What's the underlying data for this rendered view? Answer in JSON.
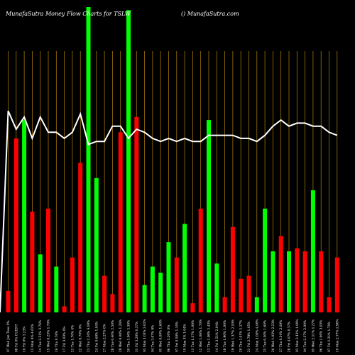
{
  "chart_data": {
    "type": "bar",
    "title": "MunafaSutra  Money Flow  Charts for TSLW",
    "subtitle": "() MunafaSutra.com",
    "ylim": [
      0,
      100
    ],
    "grid": true,
    "colors": {
      "up": "#00ff00",
      "down": "#ff0000",
      "line": "#ffffff",
      "grid": "#b8860b",
      "background": "#000000"
    },
    "categories": [
      "07 Wed Jan Tues 0%",
      "09 Fri 0% CUENT",
      "10 Fri 0% 3.23%",
      "13 Mon 4% 4.02%",
      "14 Tue 3.51% 3.76%",
      "15 Wed 0.23% 1.70%",
      "16 Thu 0.76%",
      "17 Fri 3.03% 0%",
      "21 Tue 1.70% 4%",
      "22 Wed 0.70% 0%",
      "23 Thu 2.20% 4.00%",
      "24 Fri 0.60% 1.04%",
      "27 Mon 2.27% 0%",
      "28 Tue 0.40% 2.50%",
      "29 Wed 0.00% 1.26%",
      "30 Thu 1.00% 1.30%",
      "31 Fri 3.20% 0.37%",
      "03 Mon 1.03% 3.01%",
      "04 Tue 3.07% 0%",
      "05 Wed 0.00% 1.60%",
      "06 Thu 3.20% 0%",
      "07 Fri 0.50% 1.10%",
      "10 Mon 1% 1.04%",
      "11 Tue 1.37% 1.00%",
      "12 Wed 1.06% 1.70%",
      "13 Thu 1.09% 1.43%",
      "14 Fri 3.51% 2.04%",
      "18 Tue 1.90% 1.00%",
      "19 Wed 1.37% 2.10%",
      "20 Thu 1.01% 1.17%",
      "21 Fri 2.79% 1.05%",
      "24 Mon 1.00% 4.00%",
      "25 Tue 0.50% 1.60%",
      "26 Wed 1.03% 2.23%",
      "27 Thu 0.34% 2.00%",
      "28 Fri 4.07% 0.37%",
      "03 Mon 2.13% 1.00%",
      "04 Tue 2.37% 2.00%",
      "05 Wed 2.11% 1.27%",
      "06 Thu 1.00% 3.03%",
      "07 Fri 1.21% 1.70%",
      "10 Mon 2.77% 2.90%"
    ],
    "series": [
      {
        "directions": [
          "down",
          "down",
          "up",
          "down",
          "up",
          "down",
          "up",
          "down",
          "down",
          "down",
          "up",
          "up",
          "down",
          "down",
          "down",
          "up",
          "down",
          "up",
          "up",
          "up",
          "up",
          "down",
          "up",
          "down",
          "down",
          "up",
          "up",
          "down",
          "down",
          "down",
          "down",
          "up",
          "up",
          "up",
          "down",
          "up",
          "down",
          "down",
          "up",
          "down",
          "down",
          "down"
        ],
        "values": [
          7,
          57,
          63,
          33,
          19,
          34,
          15,
          2,
          18,
          49,
          100,
          44,
          12,
          6,
          59,
          99,
          64,
          9,
          15,
          13,
          23,
          18,
          29,
          3,
          34,
          63,
          16,
          5,
          28,
          11,
          12,
          5,
          34,
          20,
          25,
          20,
          21,
          20,
          40,
          20,
          5,
          18
        ]
      },
      {
        "name": "",
        "values": [
          66,
          60,
          64,
          57,
          64,
          59,
          59,
          57,
          59,
          65,
          55,
          56,
          56,
          61,
          61,
          57,
          60,
          59,
          57,
          56,
          57,
          56,
          57,
          56,
          56,
          58,
          58,
          58,
          58,
          57,
          57,
          56,
          58,
          61,
          63,
          61,
          62,
          62,
          61,
          61,
          59,
          58
        ]
      }
    ]
  }
}
